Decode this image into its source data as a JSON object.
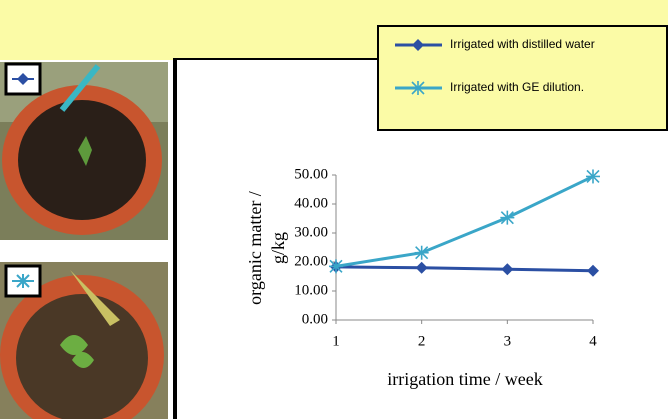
{
  "chart_data": {
    "type": "line",
    "x": [
      1,
      2,
      3,
      4
    ],
    "xlim": [
      1,
      4
    ],
    "xticks": [
      1,
      2,
      3,
      4
    ],
    "ylim": [
      0,
      50
    ],
    "yticks": [
      {
        "value": 0,
        "label": "0.00"
      },
      {
        "value": 10,
        "label": "10.00"
      },
      {
        "value": 20,
        "label": "20.00"
      },
      {
        "value": 30,
        "label": "30.00"
      },
      {
        "value": 40,
        "label": "40.00"
      },
      {
        "value": 50,
        "label": "50.00"
      }
    ],
    "ylabel": [
      "organic matter /",
      "g/kg"
    ],
    "xlabel": "irrigation time / week",
    "series": [
      {
        "name": "Irrigated with distilled water",
        "color": "#2b4fa3",
        "marker": "diamond",
        "values": [
          18.3,
          18.0,
          17.5,
          17.0
        ]
      },
      {
        "name": "Irrigated with GE dilution.",
        "color": "#3aa6c8",
        "marker": "asterisk",
        "values": [
          18.5,
          23.2,
          35.3,
          49.5
        ]
      }
    ]
  }
}
